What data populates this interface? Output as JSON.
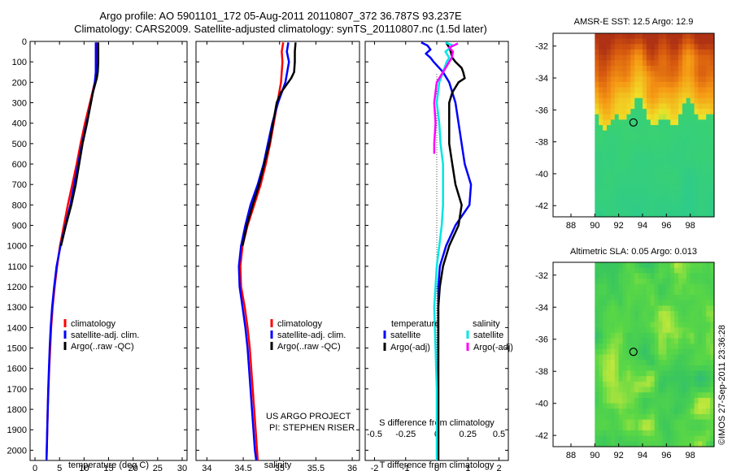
{
  "header": {
    "line1": "Argo profile: AO 5901101_172 05-Aug-2011 20110807_372 36.787S 93.237E",
    "line2": "Climatology: CARS2009. Satellite-adjusted climatology: synTS_20110807.nc (1.5d later)"
  },
  "credit": {
    "project": "US ARGO PROJECT",
    "pi": "PI: STEPHEN RISER",
    "stamp": "©IMOS 27-Sep-2011 23:36:28"
  },
  "colors": {
    "climatology": "#ff0000",
    "satellite": "#0000ff",
    "argo": "#000000",
    "salinity_satellite": "#00e5e5",
    "salinity_argo": "#ff00ff"
  },
  "depth_ticks": [
    "0",
    "100",
    "200",
    "300",
    "400",
    "500",
    "600",
    "700",
    "800",
    "900",
    "1000",
    "1100",
    "1200",
    "1300",
    "1400",
    "1500",
    "1600",
    "1700",
    "1800",
    "1900",
    "2000"
  ],
  "chart_data": [
    {
      "id": "temperature",
      "type": "line",
      "xlabel": "temperature (deg C)",
      "ylabel": "",
      "xlim": [
        -1,
        31
      ],
      "ylim": [
        2050,
        0
      ],
      "xticks": [
        0,
        5,
        10,
        15,
        20,
        25,
        30
      ],
      "legend": [
        "climatology",
        "satellite-adj. clim.",
        "Argo(..raw -QC)"
      ],
      "series": [
        {
          "name": "climatology",
          "color": "#ff0000",
          "depth": [
            5,
            50,
            100,
            150,
            200,
            300,
            400,
            500,
            600,
            700,
            800,
            900,
            1000,
            1100,
            1200,
            1300,
            1400,
            1500,
            1600,
            1700,
            1800,
            1900,
            2000,
            2050
          ],
          "values": [
            12.6,
            12.6,
            12.5,
            12.5,
            12.2,
            11.2,
            10.2,
            9.3,
            8.5,
            7.6,
            6.7,
            5.9,
            5.1,
            4.5,
            4.0,
            3.6,
            3.3,
            3.1,
            2.9,
            2.75,
            2.6,
            2.5,
            2.4,
            2.35
          ]
        },
        {
          "name": "satellite-adj. clim.",
          "color": "#0000ff",
          "depth": [
            5,
            50,
            100,
            150,
            200,
            300,
            400,
            500,
            600,
            700,
            800,
            900,
            1000,
            1100,
            1200,
            1300,
            1400,
            1500,
            1600,
            1700,
            1800,
            1900,
            2000,
            2050
          ],
          "values": [
            12.4,
            12.4,
            12.4,
            12.4,
            12.2,
            11.4,
            10.5,
            9.6,
            8.8,
            8.0,
            7.2,
            6.2,
            5.2,
            4.4,
            3.9,
            3.5,
            3.2,
            3.0,
            2.85,
            2.7,
            2.6,
            2.5,
            2.4,
            2.35
          ]
        },
        {
          "name": "Argo(..raw -QC)",
          "color": "#000000",
          "depth": [
            5,
            50,
            100,
            150,
            180,
            250,
            300,
            400,
            500,
            600,
            700,
            800,
            900,
            1000
          ],
          "values": [
            12.9,
            12.9,
            12.9,
            12.8,
            12.6,
            11.8,
            11.4,
            10.6,
            9.7,
            9.0,
            8.3,
            7.4,
            6.3,
            5.3
          ]
        }
      ]
    },
    {
      "id": "salinity",
      "type": "line",
      "xlabel": "salinity",
      "ylabel": "",
      "xlim": [
        33.85,
        36.1
      ],
      "ylim": [
        2050,
        0
      ],
      "xticks": [
        34,
        34.5,
        35,
        35.5,
        36
      ],
      "xticklabels": [
        "34",
        "34.5",
        "35",
        "35.5",
        "36"
      ],
      "legend": [
        "climatology",
        "satellite-adj. clim.",
        "Argo(..raw -QC)"
      ],
      "series": [
        {
          "name": "climatology",
          "color": "#ff0000",
          "depth": [
            5,
            50,
            100,
            200,
            300,
            400,
            500,
            600,
            700,
            800,
            900,
            1000,
            1100,
            1200,
            1300,
            1400,
            1500,
            1600,
            1700,
            1800,
            1900,
            2000,
            2050
          ],
          "values": [
            35.05,
            35.03,
            35.04,
            35.02,
            34.97,
            34.92,
            34.87,
            34.81,
            34.74,
            34.65,
            34.56,
            34.49,
            34.46,
            34.47,
            34.52,
            34.56,
            34.59,
            34.61,
            34.63,
            34.65,
            34.67,
            34.69,
            34.7
          ]
        },
        {
          "name": "satellite-adj. clim.",
          "color": "#0000ff",
          "depth": [
            5,
            50,
            100,
            200,
            300,
            400,
            500,
            600,
            700,
            800,
            900,
            1000,
            1100,
            1200,
            1300,
            1400,
            1500,
            1600,
            1700,
            1800,
            1900,
            2000,
            2050
          ],
          "values": [
            35.12,
            35.1,
            35.13,
            35.08,
            34.98,
            34.9,
            34.84,
            34.78,
            34.7,
            34.6,
            34.53,
            34.47,
            34.44,
            34.45,
            34.49,
            34.53,
            34.56,
            34.58,
            34.6,
            34.62,
            34.64,
            34.66,
            34.68
          ]
        },
        {
          "name": "Argo(..raw -QC)",
          "color": "#000000",
          "depth": [
            5,
            50,
            100,
            150,
            180,
            250,
            300,
            400,
            500,
            600,
            700,
            800,
            900,
            1000
          ],
          "values": [
            35.22,
            35.21,
            35.21,
            35.2,
            35.16,
            35.02,
            34.96,
            34.91,
            34.86,
            34.79,
            34.72,
            34.63,
            34.55,
            34.49
          ]
        }
      ]
    },
    {
      "id": "difference",
      "type": "line",
      "xlabel": "T difference from climatology",
      "top_label": "S difference from climatology",
      "xlim": [
        -2.3,
        2.3
      ],
      "ylim": [
        2050,
        0
      ],
      "xticks": [
        -2,
        -1,
        0,
        1,
        2
      ],
      "xticklabels": [
        "-2",
        "-1",
        "0",
        "1",
        "2"
      ],
      "secondary_xticks": [
        -0.5,
        -0.25,
        0,
        0.25,
        0.5
      ],
      "secondary_xticklabels": [
        "-0.5",
        "-0.25",
        "0",
        "0.25",
        "0.5"
      ],
      "legend_groups": [
        "temperature",
        "salinity"
      ],
      "legend": [
        "satellite",
        "Argo(-adj)",
        "satellite",
        "Argo(-adj)"
      ],
      "series": [
        {
          "name": "temperature satellite",
          "color": "#0000ff",
          "depth": [
            5,
            20,
            40,
            60,
            80,
            100,
            150,
            200,
            300,
            400,
            500,
            600,
            700,
            800,
            900,
            1000,
            1100,
            1200,
            1300,
            1500,
            1700,
            1900,
            2050
          ],
          "values": [
            -0.5,
            -0.3,
            -0.2,
            -0.35,
            -0.2,
            -0.1,
            0.2,
            0.4,
            0.6,
            0.7,
            0.8,
            0.9,
            1.1,
            1.05,
            0.6,
            0.3,
            0.1,
            0.05,
            0.05,
            0.05,
            0.05,
            0.05,
            0.05
          ]
        },
        {
          "name": "temperature Argo(-adj)",
          "color": "#000000",
          "depth": [
            5,
            30,
            50,
            80,
            100,
            130,
            150,
            180,
            200,
            250,
            300,
            400,
            500,
            600,
            700,
            800,
            900,
            1000,
            1100,
            1200,
            1300,
            1500,
            1700,
            1900,
            2050
          ],
          "values": [
            0.3,
            0.4,
            0.45,
            0.5,
            0.6,
            0.8,
            0.85,
            0.9,
            0.7,
            0.5,
            0.4,
            0.4,
            0.4,
            0.5,
            0.6,
            0.8,
            0.7,
            0.4,
            0.2,
            0.1,
            0.05,
            0.05,
            0.05,
            0.05,
            0.05
          ]
        },
        {
          "name": "salinity satellite",
          "color": "#00e5e5",
          "depth": [
            5,
            20,
            50,
            80,
            100,
            150,
            200,
            300,
            400,
            500,
            600,
            700,
            800,
            900,
            1000,
            1100,
            1200,
            1300,
            1500,
            1700,
            1900,
            2050
          ],
          "values": [
            0.07,
            0.13,
            0.07,
            0.1,
            0.08,
            0.05,
            0.02,
            0.0,
            0.02,
            0.03,
            0.05,
            0.05,
            0.05,
            0.04,
            0.02,
            0.0,
            -0.01,
            -0.02,
            -0.01,
            0.0,
            0.0,
            0.0
          ]
        },
        {
          "name": "salinity Argo(-adj)",
          "color": "#ff00ff",
          "depth": [
            10,
            30,
            50,
            80,
            100,
            150,
            200,
            300,
            400,
            500,
            550
          ],
          "values": [
            0.17,
            0.1,
            0.13,
            0.12,
            0.1,
            0.05,
            0.0,
            -0.02,
            -0.01,
            -0.02,
            -0.02
          ]
        }
      ]
    },
    {
      "id": "sst-map",
      "type": "heatmap",
      "title": "AMSR-E SST: 12.5 Argo: 12.9",
      "xticks": [
        88,
        90,
        92,
        94,
        96,
        98
      ],
      "yticks": [
        -32,
        -34,
        -36,
        -38,
        -40,
        -42
      ],
      "xlim": [
        86.5,
        100
      ],
      "ylim": [
        -42.7,
        -31.2
      ],
      "data_lon_range": [
        90,
        100
      ],
      "marker": {
        "lon": 93.237,
        "lat": -36.787
      }
    },
    {
      "id": "sla-map",
      "type": "heatmap",
      "title": "Altimetric SLA: 0.05 Argo: 0.013",
      "xticks": [
        88,
        90,
        92,
        94,
        96,
        98
      ],
      "yticks": [
        -32,
        -34,
        -36,
        -38,
        -40,
        -42
      ],
      "xlim": [
        86.5,
        100
      ],
      "ylim": [
        -42.7,
        -31.2
      ],
      "data_lon_range": [
        90,
        100
      ],
      "marker": {
        "lon": 93.237,
        "lat": -36.787
      }
    }
  ]
}
